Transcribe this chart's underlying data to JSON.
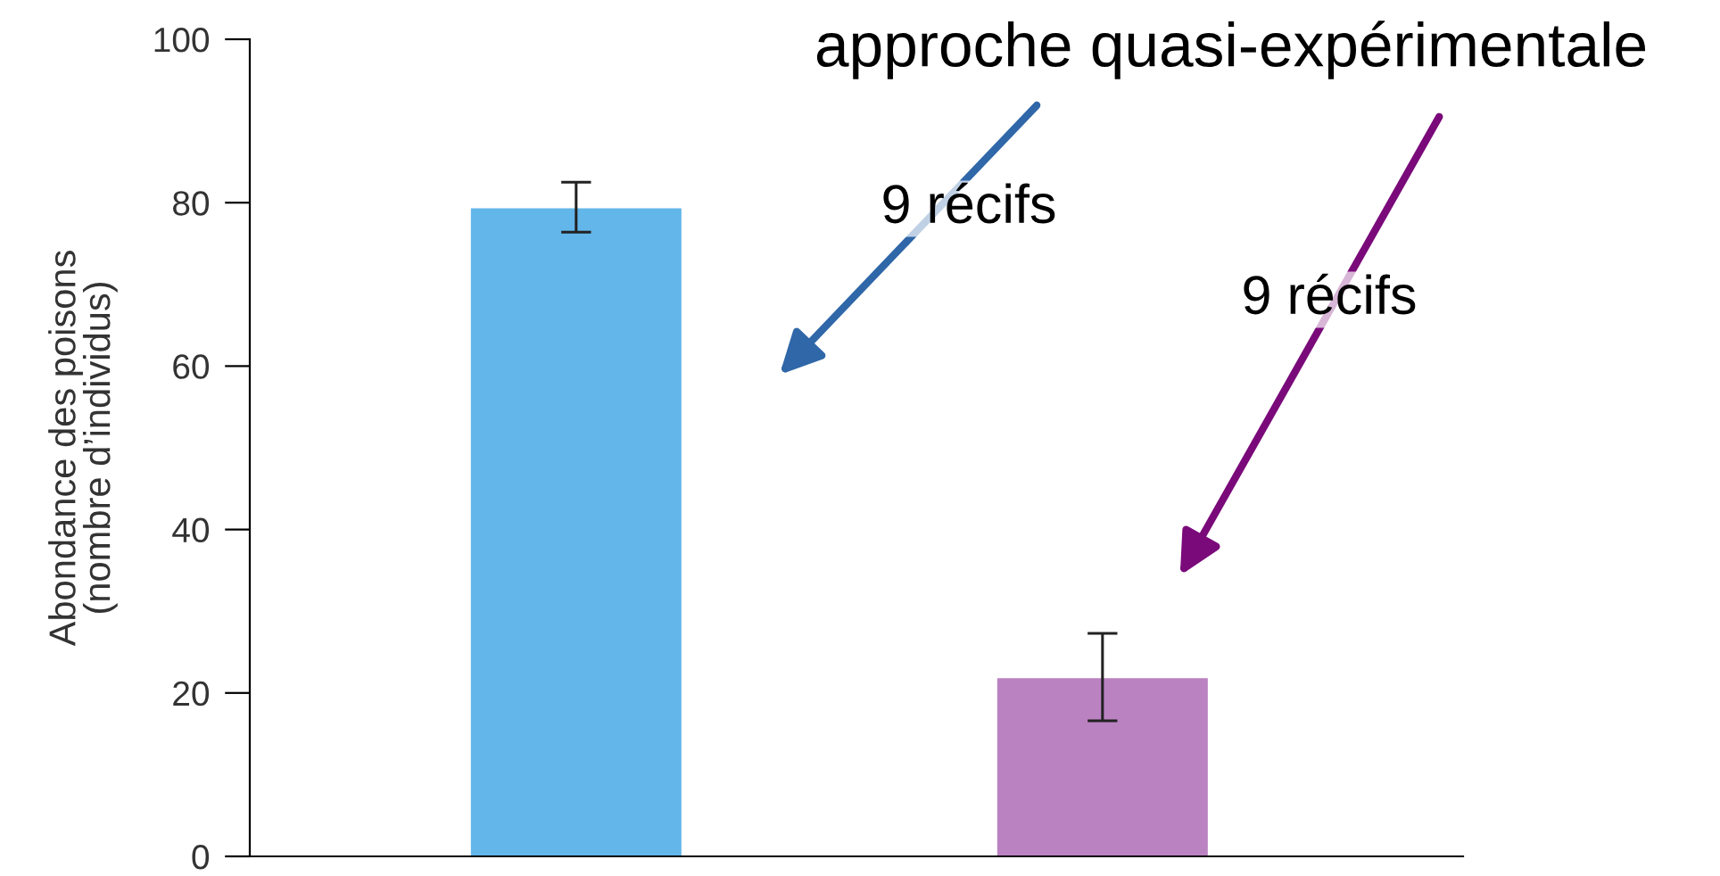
{
  "chart_data": {
    "type": "bar",
    "ylabel": "Abondance des poisons\n(nombre d’individus)",
    "categories": [
      null,
      null
    ],
    "values": [
      79.3,
      21.8
    ],
    "colors": [
      "#63b6ea",
      "#bb82c2"
    ],
    "errors": [
      [
        76.4,
        82.5
      ],
      [
        16.6,
        27.3
      ]
    ],
    "ylim": [
      0,
      100
    ],
    "yticks": [
      0,
      20,
      40,
      60,
      80,
      100
    ],
    "annotations": [
      "approche quasi-expérimentale",
      "9 récifs",
      "9 récifs"
    ],
    "grid": false,
    "legend": false
  }
}
